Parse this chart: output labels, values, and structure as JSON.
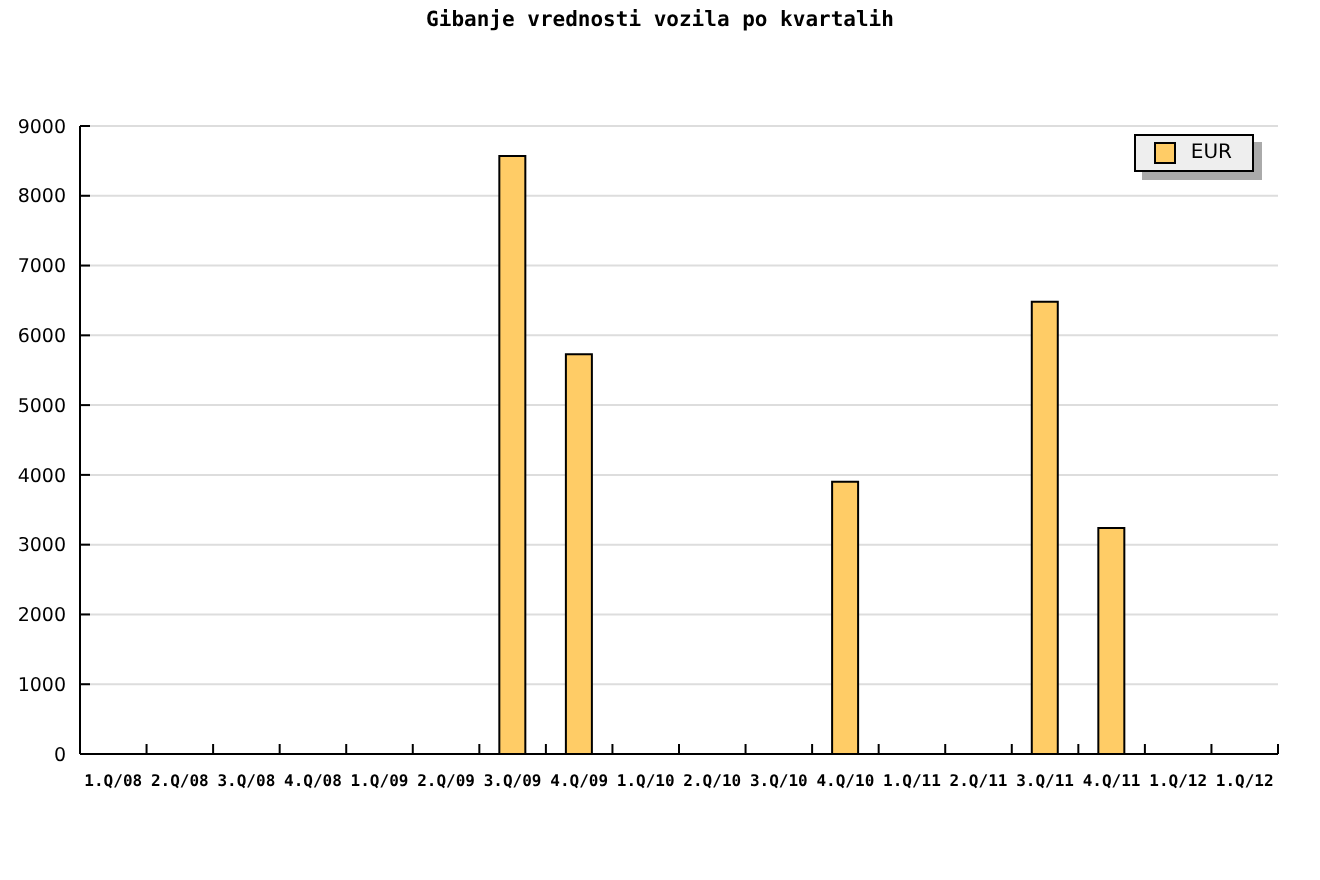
{
  "chart_data": {
    "type": "bar",
    "title": "Gibanje vrednosti vozila po kvartalih",
    "categories": [
      "1.Q/08",
      "2.Q/08",
      "3.Q/08",
      "4.Q/08",
      "1.Q/09",
      "2.Q/09",
      "3.Q/09",
      "4.Q/09",
      "1.Q/10",
      "2.Q/10",
      "3.Q/10",
      "4.Q/10",
      "1.Q/11",
      "2.Q/11",
      "3.Q/11",
      "4.Q/11",
      "1.Q/12",
      "1.Q/12"
    ],
    "series": [
      {
        "name": "EUR",
        "color": "#ffcc66",
        "values": [
          null,
          null,
          null,
          null,
          null,
          null,
          8570,
          5730,
          null,
          null,
          null,
          3900,
          null,
          null,
          6480,
          3240,
          null,
          null
        ]
      }
    ],
    "ylim": [
      0,
      9000
    ],
    "yticks": [
      0,
      1000,
      2000,
      3000,
      4000,
      5000,
      6000,
      7000,
      8000,
      9000
    ],
    "grid": "y",
    "legend": "top right"
  }
}
